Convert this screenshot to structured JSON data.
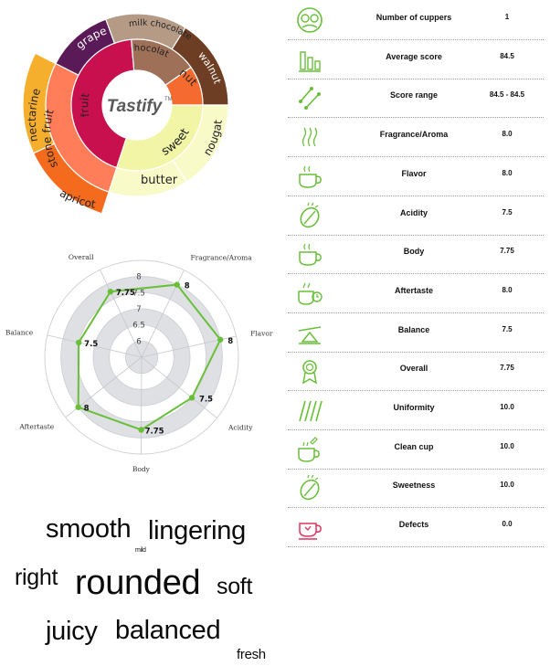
{
  "chart_data": [
    {
      "type": "sunburst",
      "center_label": "Tastify",
      "center_mark": "TM",
      "inner_ring": [
        {
          "label": "fruit",
          "color": "#c8104e"
        },
        {
          "label": "chocolate",
          "color": "#9e7058"
        },
        {
          "label": "nut",
          "color": "#f56a2e"
        },
        {
          "label": "sweet",
          "color": "#f2f5a6"
        }
      ],
      "outer_ring": [
        {
          "label": "grape",
          "parent": "fruit",
          "color": "#5a1a57"
        },
        {
          "label": "milk chocolate",
          "parent": "chocolate",
          "color": "#b59a86"
        },
        {
          "label": "walnut",
          "parent": "nut",
          "color": "#6d3e24"
        },
        {
          "label": "nougat",
          "parent": "sweet",
          "color": "#f8fac8"
        },
        {
          "label": "butter",
          "parent": "sweet",
          "color": "#f8fac8"
        },
        {
          "label": "stone fruit",
          "parent": "fruit",
          "color": "#ff7d58"
        },
        {
          "label": "nectarine",
          "parent": "stone fruit",
          "color": "#f6ae2d"
        },
        {
          "label": "apricot",
          "parent": "stone fruit",
          "color": "#f46b1e"
        }
      ]
    },
    {
      "type": "radar",
      "axes": [
        "Fragrance/Aroma",
        "Flavor",
        "Acidity",
        "Body",
        "Aftertaste",
        "Balance",
        "Overall"
      ],
      "values": [
        8,
        8,
        7.5,
        7.75,
        8,
        7.5,
        7.75
      ],
      "value_labels": [
        "8",
        "8",
        "7.5",
        "7.75",
        "8",
        "7.5",
        "7.75"
      ],
      "ticks": [
        "6",
        "6.5",
        "7",
        "7.5",
        "8"
      ],
      "range": [
        5.5,
        8.5
      ],
      "color": "#6abf3a"
    }
  ],
  "word_cloud": [
    {
      "text": "smooth",
      "size": 29
    },
    {
      "text": "lingering",
      "size": 29
    },
    {
      "text": "mild",
      "size": 7
    },
    {
      "text": "right",
      "size": 25
    },
    {
      "text": "rounded",
      "size": 38
    },
    {
      "text": "soft",
      "size": 25
    },
    {
      "text": "juicy",
      "size": 29
    },
    {
      "text": "balanced",
      "size": 29
    },
    {
      "text": "fresh",
      "size": 15
    }
  ],
  "score_table": [
    {
      "icon": "cuppers-icon",
      "label": "Number of cuppers",
      "value": "1"
    },
    {
      "icon": "bar-chart-icon",
      "label": "Average score",
      "value": "84.5"
    },
    {
      "icon": "range-icon",
      "label": "Score range",
      "value": "84.5 - 84.5"
    },
    {
      "icon": "aroma-icon",
      "label": "Fragrance/Aroma",
      "value": "8.0"
    },
    {
      "icon": "cup-icon",
      "label": "Flavor",
      "value": "8.0"
    },
    {
      "icon": "bean-icon",
      "label": "Acidity",
      "value": "7.5"
    },
    {
      "icon": "cup-icon",
      "label": "Body",
      "value": "7.75"
    },
    {
      "icon": "cup-clock-icon",
      "label": "Aftertaste",
      "value": "8.0"
    },
    {
      "icon": "balance-icon",
      "label": "Balance",
      "value": "7.5"
    },
    {
      "icon": "ribbon-icon",
      "label": "Overall",
      "value": "7.75"
    },
    {
      "icon": "uniformity-icon",
      "label": "Uniformity",
      "value": "10.0"
    },
    {
      "icon": "clean-cup-icon",
      "label": "Clean cup",
      "value": "10.0"
    },
    {
      "icon": "bean-icon",
      "label": "Sweetness",
      "value": "10.0"
    },
    {
      "icon": "defect-cup-icon",
      "label": "Defects",
      "value": "0.0"
    }
  ],
  "colors": {
    "accent": "#6abf3a",
    "defect": "#e0345c"
  }
}
